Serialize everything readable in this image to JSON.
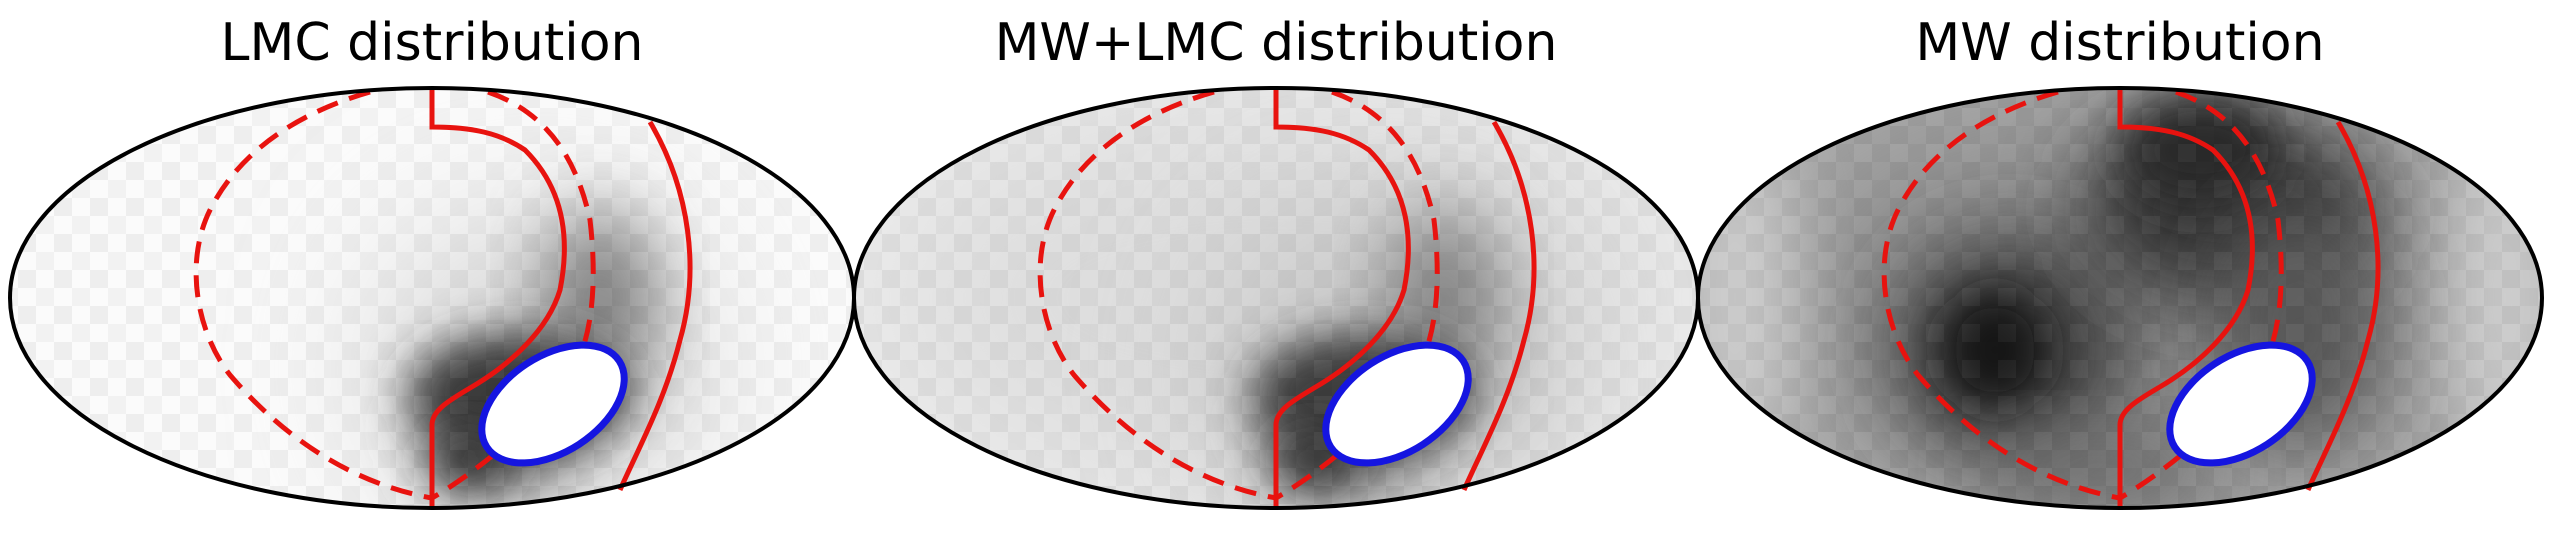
{
  "chart_data": [
    {
      "type": "heatmap",
      "title": "LMC distribution",
      "projection": "mollweide",
      "colormap": "grayscale (white = low, black = high)",
      "features": [
        "density concentrated around the blue contour, very light elsewhere"
      ]
    },
    {
      "type": "heatmap",
      "title": "MW+LMC distribution",
      "projection": "mollweide",
      "colormap": "grayscale (white = low, black = high)",
      "features": [
        "uniform light-gray background with dark concentration around the blue contour"
      ]
    },
    {
      "type": "heatmap",
      "title": "MW distribution",
      "projection": "mollweide",
      "colormap": "grayscale (white = low, black = high)",
      "features": [
        "dark blob left of center",
        "dark band upper right",
        "lighter toward edges"
      ]
    }
  ],
  "styles": {
    "outline_color": "#000000",
    "contour_red": "#e8130f",
    "contour_blue": "#1515e0"
  }
}
